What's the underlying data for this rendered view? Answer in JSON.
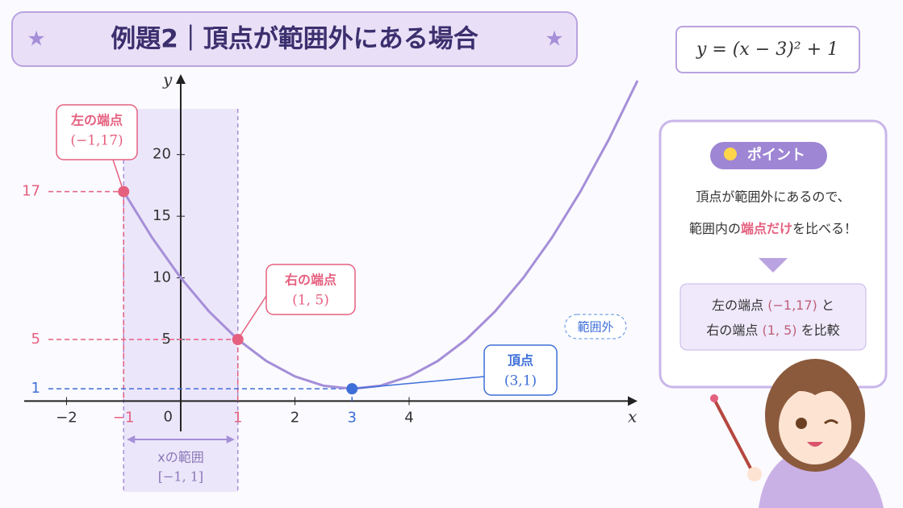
{
  "header": {
    "title": "例題2｜頂点が範囲外にある場合"
  },
  "formula": "y = (x − 3)² + 1",
  "chart_data": {
    "type": "line",
    "x": [
      -1,
      -0.5,
      0,
      0.5,
      1,
      1.5,
      2,
      2.5,
      3,
      3.5,
      4,
      4.5,
      5,
      5.5,
      6,
      6.5,
      7,
      7.5,
      8
    ],
    "values": [
      17,
      13.25,
      10,
      7.25,
      5,
      3.25,
      2,
      1.25,
      1,
      1.25,
      2,
      3.25,
      5,
      7.25,
      10,
      13.25,
      17,
      21.25,
      26
    ],
    "color": "#a58fd8",
    "x_label": "x",
    "y_label": "y",
    "origin_label": "0",
    "xlim": [
      -2.6,
      8
    ],
    "ylim": [
      -2,
      26
    ],
    "xticks": [
      {
        "value": -2,
        "label": "−2"
      },
      2,
      4
    ],
    "yticks": [
      5,
      10,
      15,
      20
    ],
    "range": {
      "from": -1,
      "to": 1,
      "label": "xの範囲",
      "interval": "[−1, 1]"
    },
    "points": [
      {
        "name": "左の端点",
        "coord": "(−1,17)",
        "x": -1,
        "x_label": "−1",
        "y": 17,
        "color": "#e5607f"
      },
      {
        "name": "右の端点",
        "coord": "(1, 5)",
        "x": 1,
        "y": 5,
        "color": "#e5607f"
      },
      {
        "name": "頂点",
        "coord": "(3,1)",
        "x": 3,
        "y": 1,
        "color": "#3e6fd8",
        "badge": "範囲外"
      }
    ]
  },
  "panel": {
    "badge": "ポイント",
    "line1": "頂点が範囲外にあるので、",
    "line2": [
      "範囲内の",
      "端点だけ",
      "を比べる！"
    ],
    "compare": [
      [
        "左の端点 ",
        "(−1,17)",
        " と"
      ],
      [
        "右の端点 ",
        "(1, 5)",
        " を比較"
      ]
    ]
  }
}
